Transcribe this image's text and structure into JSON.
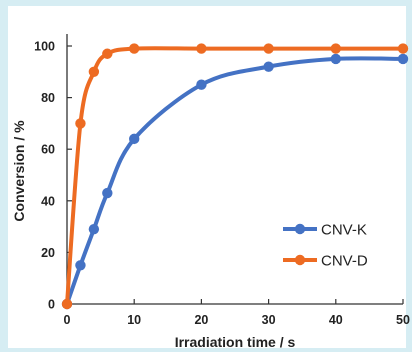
{
  "chart_data": {
    "type": "line",
    "xlabel": "Irradiation time  / s",
    "ylabel": "Conversion  / %",
    "xlim": [
      0,
      50
    ],
    "ylim": [
      0,
      100
    ],
    "xticks": [
      0,
      10,
      20,
      30,
      40,
      50
    ],
    "yticks": [
      0,
      20,
      40,
      60,
      80,
      100
    ],
    "grid": false,
    "legend_position": "bottom-right",
    "series": [
      {
        "name": "CNV-K",
        "color": "#4472c4",
        "x": [
          0,
          2,
          4,
          6,
          10,
          20,
          30,
          40,
          50
        ],
        "y": [
          0,
          15,
          29,
          43,
          64,
          85,
          92,
          95,
          95
        ]
      },
      {
        "name": "CNV-D",
        "color": "#ed6b22",
        "x": [
          0,
          2,
          4,
          6,
          10,
          20,
          30,
          40,
          50
        ],
        "y": [
          0,
          70,
          90,
          97,
          99,
          99,
          99,
          99,
          99
        ]
      }
    ]
  }
}
